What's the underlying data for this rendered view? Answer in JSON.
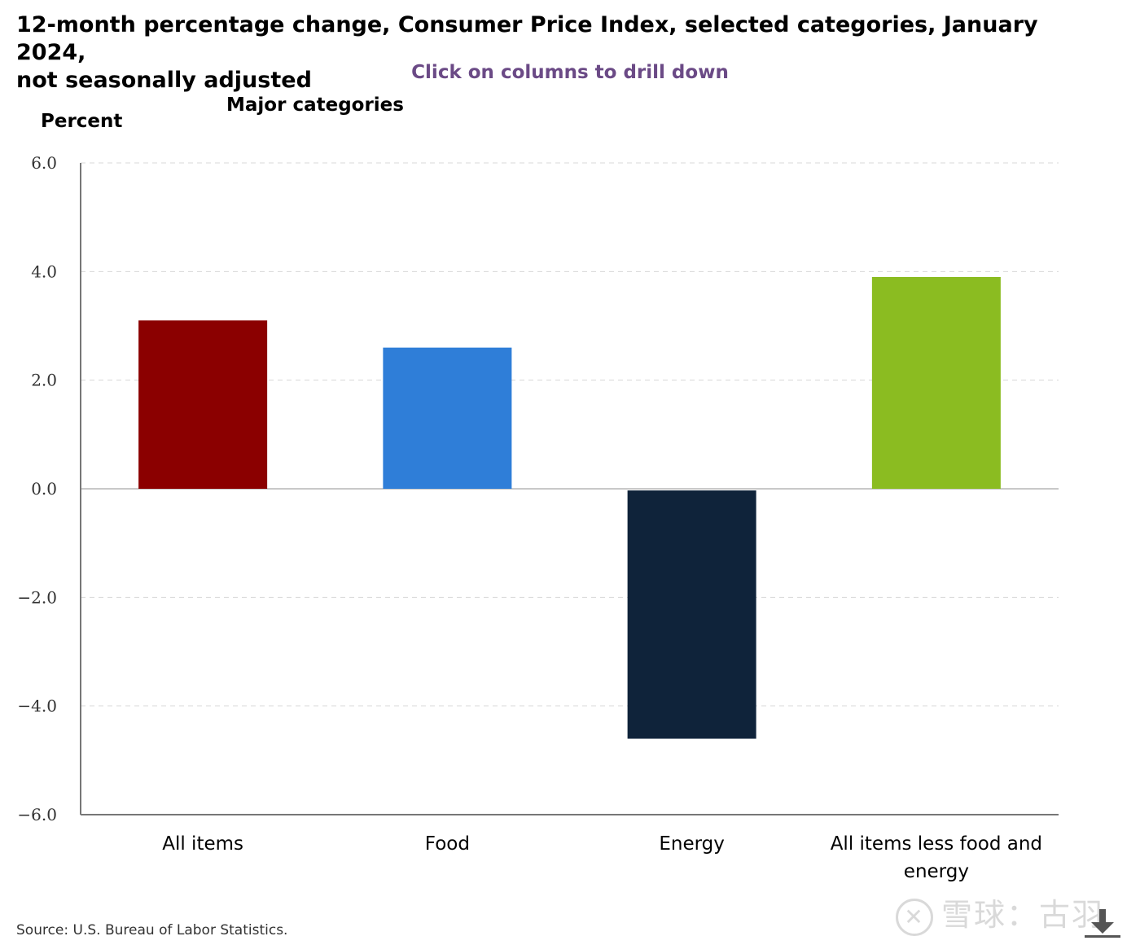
{
  "title_line1": "12-month percentage change, Consumer Price Index, selected categories, January 2024,",
  "title_line2": "not seasonally adjusted",
  "drill_hint": "Click on columns to drill down",
  "source": "Source: U.S. Bureau of Labor Statistics.",
  "watermark": "雪球：古羽",
  "download_icon": "download-icon",
  "chart_data": {
    "type": "bar",
    "title": "12-month percentage change, Consumer Price Index, selected categories, January 2024, not seasonally adjusted",
    "subtitle": "Major categories",
    "xlabel": "",
    "ylabel": "Percent",
    "categories": [
      "All items",
      "Food",
      "Energy",
      "All items less food and energy"
    ],
    "category_lines": [
      [
        "All items"
      ],
      [
        "Food"
      ],
      [
        "Energy"
      ],
      [
        "All items less food and",
        "energy"
      ]
    ],
    "values": [
      3.1,
      2.6,
      -4.6,
      3.9
    ],
    "colors": [
      "#8b0000",
      "#2f7ed8",
      "#0f233a",
      "#8bbc21"
    ],
    "ylim": [
      -6.0,
      6.0
    ],
    "yticks": [
      6.0,
      4.0,
      2.0,
      0.0,
      -2.0,
      -4.0,
      -6.0
    ],
    "ytick_labels": [
      "6.0",
      "4.0",
      "2.0",
      "0.0",
      "−2.0",
      "−4.0",
      "−6.0"
    ],
    "grid": true,
    "legend": "none"
  }
}
